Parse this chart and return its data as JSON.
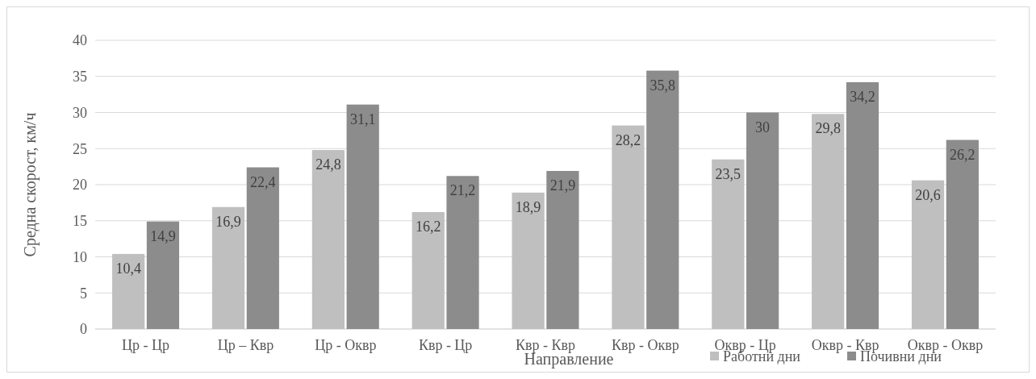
{
  "chart_data": {
    "type": "bar",
    "xlabel": "Направление",
    "ylabel": "Средна скорост, км/ч",
    "categories": [
      "Цр - Цр",
      "Цр – Квр",
      "Цр - Оквр",
      "Квр - Цр",
      "Квр - Квр",
      "Квр - Оквр",
      "Оквр - Цр",
      "Оквр - Квр",
      "Оквр - Оквр"
    ],
    "series": [
      {
        "name": "Работни дни",
        "color": "#bfbfbf",
        "values": [
          10.4,
          16.9,
          24.8,
          16.2,
          18.9,
          28.2,
          23.5,
          29.8,
          20.6
        ],
        "value_labels": [
          "10,4",
          "16,9",
          "24,8",
          "16,2",
          "18,9",
          "28,2",
          "23,5",
          "29,8",
          "20,6"
        ]
      },
      {
        "name": "Почивни дни",
        "color": "#8c8c8c",
        "values": [
          14.9,
          22.4,
          31.1,
          21.2,
          21.9,
          35.8,
          30,
          34.2,
          26.2
        ],
        "value_labels": [
          "14,9",
          "22,4",
          "31,1",
          "21,2",
          "21,9",
          "35,8",
          "30",
          "34,2",
          "26,2"
        ]
      }
    ],
    "ylim": [
      0,
      40
    ],
    "yticks": [
      0,
      5,
      10,
      15,
      20,
      25,
      30,
      35,
      40
    ],
    "grid": "y",
    "legend": "bottom right"
  }
}
